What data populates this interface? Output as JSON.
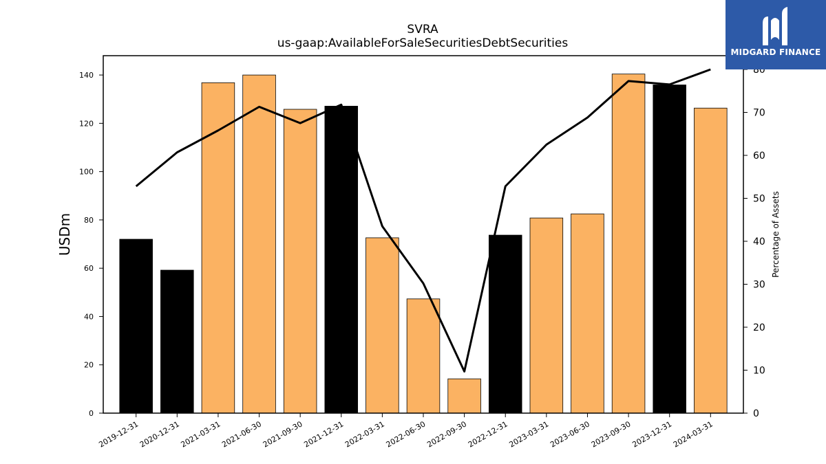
{
  "brand": {
    "name": "MIDGARD FINANCE",
    "bg_color": "#2d5aa8"
  },
  "colors": {
    "bar_orange": "#fbb262",
    "bar_black": "#000000",
    "line": "#000000"
  },
  "chart_data": {
    "type": "bar",
    "title": "SVRA",
    "subtitle": "us-gaap:AvailableForSaleSecuritiesDebtSecurities",
    "ylabel": "USDm",
    "y2label": "Percentage of Assets",
    "categories": [
      "2019-12-31",
      "2020-12-31",
      "2021-03-31",
      "2021-06-30",
      "2021-09-30",
      "2021-12-31",
      "2022-03-31",
      "2022-06-30",
      "2022-09-30",
      "2022-12-31",
      "2023-03-31",
      "2023-06-30",
      "2023-09-30",
      "2023-12-31",
      "2024-03-31"
    ],
    "series": [
      {
        "type": "bar",
        "values": [
          72.0,
          59.2,
          136.8,
          140.0,
          125.8,
          127.1,
          72.6,
          47.3,
          14.2,
          73.7,
          80.8,
          82.5,
          140.4,
          135.9,
          126.3
        ],
        "highlight": [
          true,
          true,
          false,
          false,
          false,
          true,
          false,
          false,
          false,
          true,
          false,
          false,
          false,
          true,
          false
        ]
      },
      {
        "type": "line",
        "axis": "right",
        "values": [
          52.8,
          60.7,
          65.8,
          71.3,
          67.5,
          71.8,
          43.5,
          30.2,
          9.7,
          52.8,
          62.5,
          68.8,
          77.3,
          76.5,
          80.0
        ]
      }
    ],
    "ylim": [
      0,
      148
    ],
    "y2lim": [
      0,
      83.2
    ],
    "yticks": [
      0,
      20,
      40,
      60,
      80,
      100,
      120,
      140
    ],
    "y2ticks": [
      0,
      10,
      20,
      30,
      40,
      50,
      60,
      70,
      80
    ]
  }
}
